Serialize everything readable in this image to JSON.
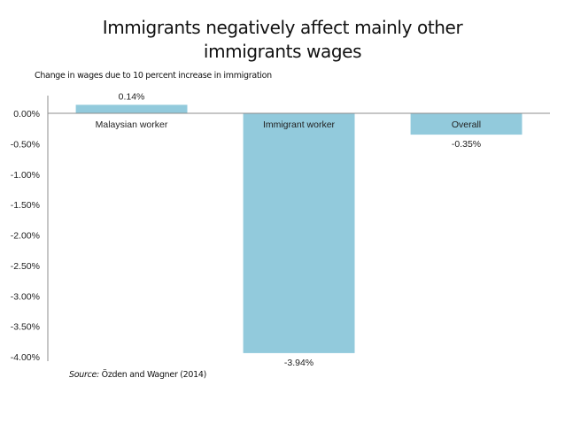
{
  "title_line1": "Immigrants negatively affect mainly other",
  "title_line2": "immigrants wages",
  "subtitle": "Change in wages due to 10 percent increase in immigration",
  "source_prefix": "Source:",
  "source_text": " Özden and Wagner (2014)",
  "colors": {
    "bar": "#92cadc",
    "axis": "#8c8c8c",
    "text": "#222222"
  },
  "chart_data": {
    "type": "bar",
    "title": "Immigrants negatively affect mainly other immigrants wages",
    "ylabel": "Change in wages due to 10 percent increase in immigration",
    "xlabel": "",
    "categories": [
      "Malaysian worker",
      "Immigrant worker",
      "Overall"
    ],
    "values": [
      0.14,
      -3.94,
      -0.35
    ],
    "data_labels": [
      "0.14%",
      "-3.94%",
      "-0.35%"
    ],
    "ylim": [
      -4.0,
      0.0
    ],
    "yticks": [
      0.0,
      -0.5,
      -1.0,
      -1.5,
      -2.0,
      -2.5,
      -3.0,
      -3.5,
      -4.0
    ],
    "ytick_labels": [
      "0.00%",
      "-0.50%",
      "-1.00%",
      "-1.50%",
      "-2.00%",
      "-2.50%",
      "-3.00%",
      "-3.50%",
      "-4.00%"
    ],
    "grid": false,
    "legend": "none",
    "unit": "percent"
  }
}
